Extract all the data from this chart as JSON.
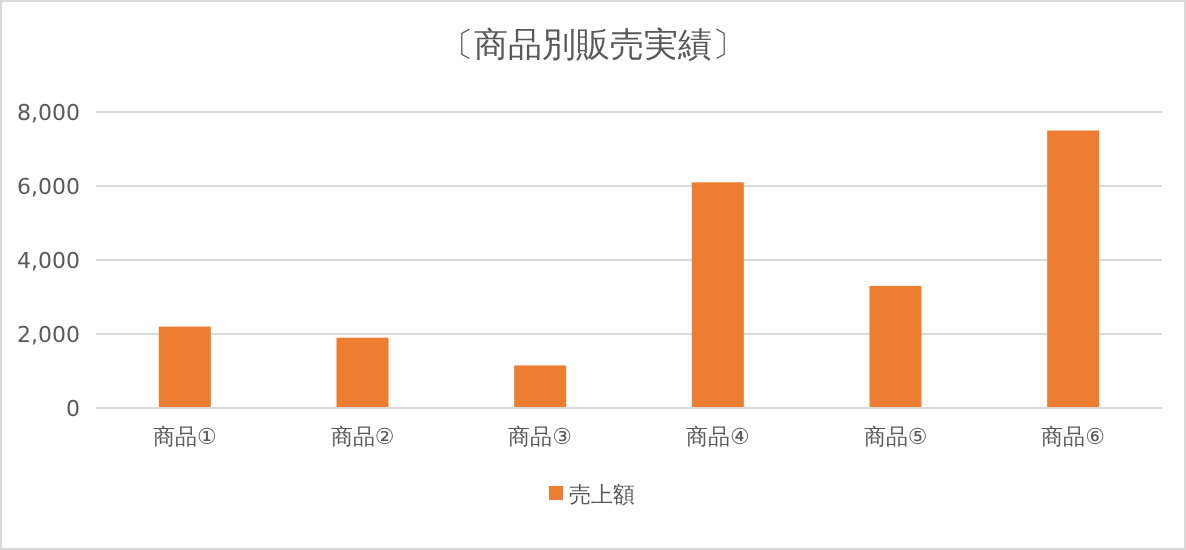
{
  "chart_data": {
    "type": "bar",
    "title": "〔商品別販売実績〕",
    "categories": [
      "商品①",
      "商品②",
      "商品③",
      "商品④",
      "商品⑤",
      "商品⑥"
    ],
    "series": [
      {
        "name": "売上額",
        "color": "#ed7d31",
        "values": [
          2200,
          1900,
          1150,
          6100,
          3300,
          7500
        ]
      }
    ],
    "ylim": [
      0,
      8000
    ],
    "yticks": [
      {
        "value": 0,
        "label": "0"
      },
      {
        "value": 2000,
        "label": "2,000"
      },
      {
        "value": 4000,
        "label": "4,000"
      },
      {
        "value": 6000,
        "label": "6,000"
      },
      {
        "value": 8000,
        "label": "8,000"
      }
    ],
    "grid": "y",
    "legend": "bottom"
  }
}
